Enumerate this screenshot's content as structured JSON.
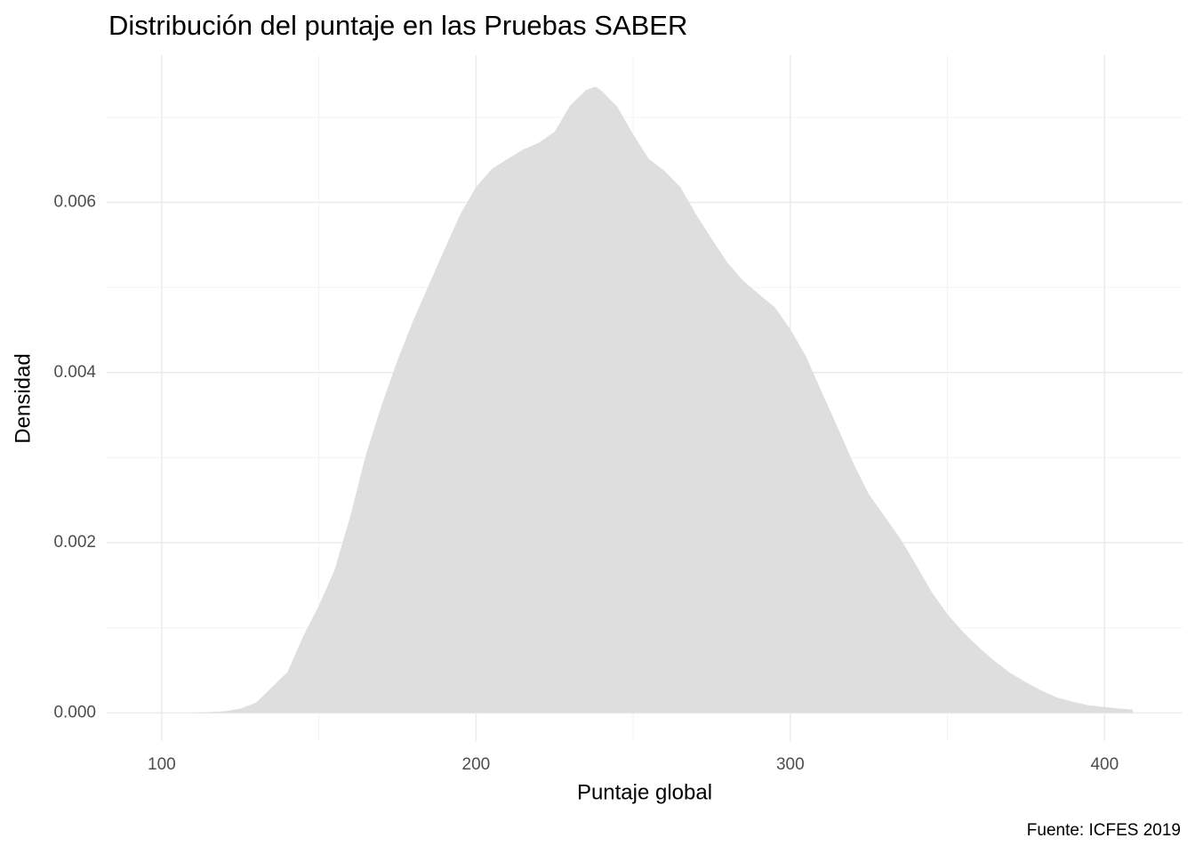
{
  "chart_data": {
    "type": "area",
    "title": "Distribución del puntaje en las Pruebas SABER",
    "x_label": "Puntaje global",
    "y_label": "Densidad",
    "caption": "Fuente: ICFES 2019",
    "color": "#dedede",
    "x": [
      100,
      110,
      115,
      120,
      125,
      130,
      135,
      140,
      145,
      150,
      155,
      160,
      165,
      170,
      175,
      180,
      185,
      190,
      195,
      200,
      205,
      210,
      215,
      220,
      225,
      230,
      235,
      238,
      240,
      245,
      250,
      255,
      260,
      265,
      270,
      275,
      280,
      285,
      290,
      295,
      300,
      305,
      310,
      315,
      320,
      325,
      330,
      335,
      340,
      345,
      350,
      355,
      360,
      365,
      370,
      375,
      380,
      385,
      390,
      395,
      400,
      405,
      409
    ],
    "values": [
      0,
      0,
      1e-05,
      2e-05,
      5e-05,
      0.00012,
      0.0003,
      0.00048,
      0.0009,
      0.00126,
      0.00168,
      0.00231,
      0.00304,
      0.00362,
      0.00414,
      0.00461,
      0.00503,
      0.00545,
      0.00586,
      0.00618,
      0.00639,
      0.00651,
      0.00662,
      0.0067,
      0.00683,
      0.00714,
      0.00732,
      0.00736,
      0.00731,
      0.00712,
      0.0068,
      0.00651,
      0.00637,
      0.00618,
      0.00586,
      0.00557,
      0.00529,
      0.00508,
      0.00492,
      0.00477,
      0.00451,
      0.00419,
      0.00377,
      0.00336,
      0.00294,
      0.00257,
      0.00231,
      0.00205,
      0.00174,
      0.00142,
      0.00116,
      0.00095,
      0.00077,
      0.00061,
      0.00047,
      0.00036,
      0.00026,
      0.00018,
      0.00013,
      9e-05,
      7e-05,
      5e-05,
      4e-05
    ],
    "xlim": [
      82.5,
      424.8
    ],
    "ylim": [
      -0.00033,
      0.00773
    ],
    "xticks": [
      100,
      200,
      300,
      400
    ],
    "yticks": [
      {
        "value": 0,
        "label": "0.000"
      },
      0.002,
      0.004,
      0.006
    ],
    "x_minor_ticks": [
      150,
      250,
      350
    ],
    "y_minor_ticks": [
      0.001,
      0.003,
      0.005,
      0.007
    ],
    "grid": true
  }
}
